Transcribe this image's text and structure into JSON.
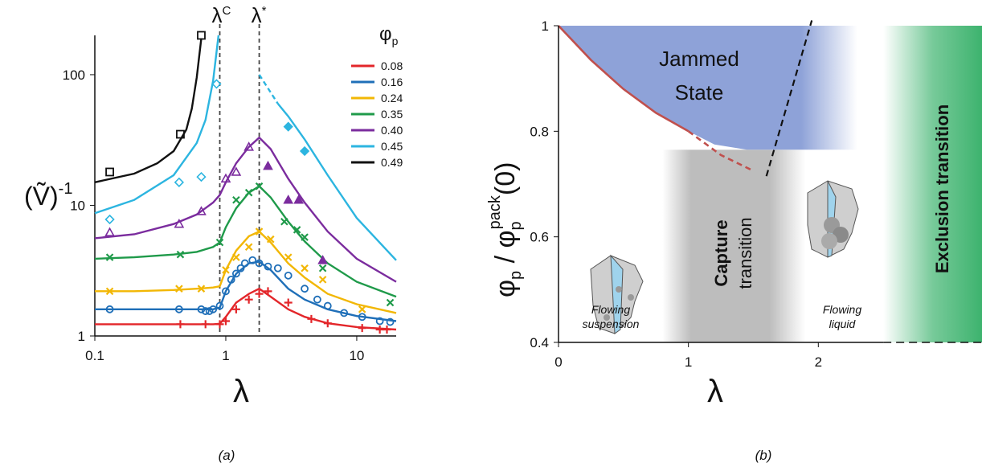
{
  "chart_data": [
    {
      "type": "line",
      "caption": "(a)",
      "xlabel": "λ",
      "ylabel": {
        "text": "(Ṽ)",
        "sup": "-1"
      },
      "xscale": "log",
      "yscale": "log",
      "xlim": [
        0.1,
        20
      ],
      "ylim": [
        1,
        200
      ],
      "xticks": [
        0.1,
        1,
        10
      ],
      "yticks": [
        1,
        10,
        100
      ],
      "legend_title": {
        "text": "φ",
        "sub": "p"
      },
      "legend": "upper right",
      "vlines": [
        {
          "x": 0.9,
          "label": "λ",
          "sup": "C"
        },
        {
          "x": 1.8,
          "label": "λ",
          "sup": "*"
        }
      ],
      "series": [
        {
          "name": "0.08",
          "color": "#e3262a",
          "marker": "plus",
          "x": [
            0.1,
            0.2,
            0.4,
            0.6,
            0.8,
            0.9,
            1.0,
            1.2,
            1.5,
            1.8,
            2.2,
            3,
            4,
            6,
            10,
            20
          ],
          "values": [
            1.23,
            1.23,
            1.23,
            1.23,
            1.23,
            1.24,
            1.4,
            1.8,
            2.1,
            2.3,
            2.0,
            1.6,
            1.4,
            1.25,
            1.17,
            1.12
          ],
          "points_x": [
            0.45,
            0.7,
            0.9,
            1.0,
            1.2,
            1.5,
            1.8,
            2.1,
            3.0,
            4.5,
            6,
            11,
            15,
            17
          ],
          "points_y": [
            1.23,
            1.23,
            1.23,
            1.3,
            1.6,
            1.9,
            2.1,
            2.2,
            1.8,
            1.35,
            1.25,
            1.15,
            1.12,
            1.12
          ]
        },
        {
          "name": "0.16",
          "color": "#1f6fb8",
          "marker": "circle",
          "x": [
            0.1,
            0.2,
            0.4,
            0.6,
            0.8,
            0.9,
            1.0,
            1.2,
            1.5,
            1.8,
            2.2,
            3,
            4,
            6,
            10,
            20
          ],
          "values": [
            1.6,
            1.6,
            1.6,
            1.6,
            1.6,
            1.65,
            2.2,
            3.0,
            3.6,
            3.7,
            3.2,
            2.3,
            1.9,
            1.6,
            1.42,
            1.3
          ],
          "points_x": [
            0.13,
            0.44,
            0.65,
            0.7,
            0.75,
            0.8,
            0.9,
            1.0,
            1.1,
            1.2,
            1.3,
            1.4,
            1.6,
            1.8,
            2.1,
            2.5,
            3,
            4,
            5,
            6,
            8,
            11,
            15,
            18
          ],
          "points_y": [
            1.6,
            1.6,
            1.6,
            1.55,
            1.55,
            1.6,
            1.7,
            2.2,
            2.7,
            3.0,
            3.3,
            3.6,
            3.8,
            3.6,
            3.4,
            3.3,
            2.9,
            2.3,
            1.9,
            1.7,
            1.5,
            1.4,
            1.3,
            1.28
          ]
        },
        {
          "name": "0.24",
          "color": "#f2b705",
          "marker": "x",
          "x": [
            0.1,
            0.2,
            0.4,
            0.6,
            0.8,
            0.9,
            1.0,
            1.2,
            1.5,
            1.8,
            2.2,
            3,
            4,
            6,
            10,
            20
          ],
          "values": [
            2.2,
            2.2,
            2.25,
            2.3,
            2.35,
            2.4,
            3.2,
            4.5,
            5.8,
            6.3,
            5.2,
            3.6,
            2.8,
            2.1,
            1.75,
            1.5
          ],
          "points_x": [
            0.13,
            0.44,
            0.65,
            1.0,
            1.2,
            1.5,
            1.8,
            2.2,
            3.0,
            4,
            5.5,
            11
          ],
          "points_y": [
            2.2,
            2.3,
            2.3,
            3.2,
            4.0,
            4.8,
            6.3,
            5.5,
            4.0,
            3.3,
            2.7,
            1.6
          ]
        },
        {
          "name": "0.35",
          "color": "#1f9a4a",
          "marker": "x",
          "x": [
            0.1,
            0.2,
            0.4,
            0.6,
            0.8,
            0.9,
            1.0,
            1.2,
            1.5,
            1.8,
            2.2,
            3,
            4,
            6,
            10,
            20
          ],
          "values": [
            3.9,
            4.0,
            4.2,
            4.4,
            4.8,
            5.2,
            6.8,
            9.5,
            12.5,
            14,
            11.5,
            7.5,
            5.3,
            3.6,
            2.6,
            2.0
          ],
          "points_x": [
            0.13,
            0.45,
            0.9,
            1.2,
            1.5,
            1.8,
            2.8,
            3.5,
            4,
            5.5,
            18
          ],
          "points_y": [
            4.0,
            4.2,
            5.2,
            11,
            12.5,
            14,
            7.5,
            6.5,
            5.7,
            3.3,
            1.8
          ]
        },
        {
          "name": "0.40",
          "color": "#7b2c9e",
          "marker": "triangle",
          "x": [
            0.1,
            0.2,
            0.4,
            0.6,
            0.8,
            0.9,
            1.0,
            1.2,
            1.5,
            1.8,
            2.2,
            3,
            4,
            6,
            10,
            20
          ],
          "values": [
            5.6,
            6.0,
            7.2,
            8.5,
            10.5,
            12,
            15,
            21,
            28,
            33,
            27,
            16,
            10.5,
            6.3,
            3.9,
            2.6
          ],
          "points_x": [
            0.13,
            0.44,
            0.65,
            1.0,
            1.2,
            1.5,
            2.1,
            3.0,
            3.6,
            5.5
          ],
          "points_y": [
            6.2,
            7.2,
            9.0,
            16,
            18,
            28,
            20,
            11,
            11,
            3.8
          ],
          "points_filled": [
            false,
            false,
            false,
            false,
            false,
            false,
            true,
            true,
            true,
            true
          ]
        },
        {
          "name": "0.45",
          "color": "#2cb5e0",
          "marker": "diamond",
          "x": [
            0.1,
            0.2,
            0.4,
            0.6,
            0.7,
            0.8,
            0.85,
            0.88,
            0.9,
            2.5,
            3,
            4,
            6,
            10,
            20
          ],
          "values": [
            8.7,
            11,
            17,
            30,
            45,
            90,
            150,
            200,
            null,
            60,
            48,
            32,
            17,
            8,
            3.8
          ],
          "dashed_x": [
            1.8,
            2.5
          ],
          "dashed_values": [
            100,
            60
          ],
          "points_x": [
            0.13,
            0.44,
            0.65,
            0.85,
            3.0,
            4.0
          ],
          "points_y": [
            7.8,
            15,
            16.5,
            85,
            40,
            26
          ],
          "points_filled": [
            false,
            false,
            false,
            false,
            true,
            true
          ]
        },
        {
          "name": "0.49",
          "color": "#111111",
          "marker": "square",
          "x": [
            0.1,
            0.2,
            0.3,
            0.4,
            0.5,
            0.55,
            0.6,
            0.65
          ],
          "values": [
            15,
            17.5,
            21,
            26,
            38,
            55,
            95,
            190
          ],
          "points_x": [
            0.13,
            0.45,
            0.65
          ],
          "points_y": [
            18,
            35,
            200
          ]
        }
      ]
    },
    {
      "type": "phase",
      "caption": "(b)",
      "xlabel": "λ",
      "ylabel": {
        "a": "φ",
        "a_sub": "p",
        "slash": " / ",
        "b": "φ",
        "b_sub": "p",
        "b_sup": "pack",
        "tail": "(0)"
      },
      "xlim": [
        0,
        3.26
      ],
      "ylim": [
        0.4,
        1
      ],
      "xticks": [
        0,
        1,
        2
      ],
      "yticks": [
        0.4,
        0.6,
        0.8,
        1
      ],
      "jammed": {
        "label": [
          "Jammed",
          "State"
        ],
        "color": "#8ea2d8",
        "x": [
          0,
          0.25,
          0.5,
          0.75,
          1.0,
          1.2,
          1.45,
          2.3,
          2.3
        ],
        "values": [
          1,
          0.935,
          0.88,
          0.835,
          0.8,
          0.775,
          0.765,
          0.765,
          1
        ]
      },
      "boundary": {
        "color": "#c0504d",
        "x": [
          0,
          0.25,
          0.5,
          0.75,
          1.0
        ],
        "values": [
          1,
          0.935,
          0.88,
          0.835,
          0.8
        ],
        "dashed_x": [
          1.0,
          1.25,
          1.5
        ],
        "dashed_values": [
          0.8,
          0.755,
          0.725
        ]
      },
      "jamming_line": {
        "x": [
          1.6,
          1.95
        ],
        "values": [
          0.715,
          1.01
        ]
      },
      "capture": {
        "label": [
          "Capture",
          "transition"
        ],
        "xlim": [
          0.8,
          1.9
        ]
      },
      "exclusion": {
        "label": "Exclusion transition",
        "xlim": [
          2.5,
          3.26
        ],
        "color": "#3db36e"
      },
      "regions": [
        {
          "label": [
            "Flowing",
            "suspension"
          ]
        },
        {
          "label": [
            "Flowing",
            "liquid"
          ]
        }
      ]
    }
  ]
}
